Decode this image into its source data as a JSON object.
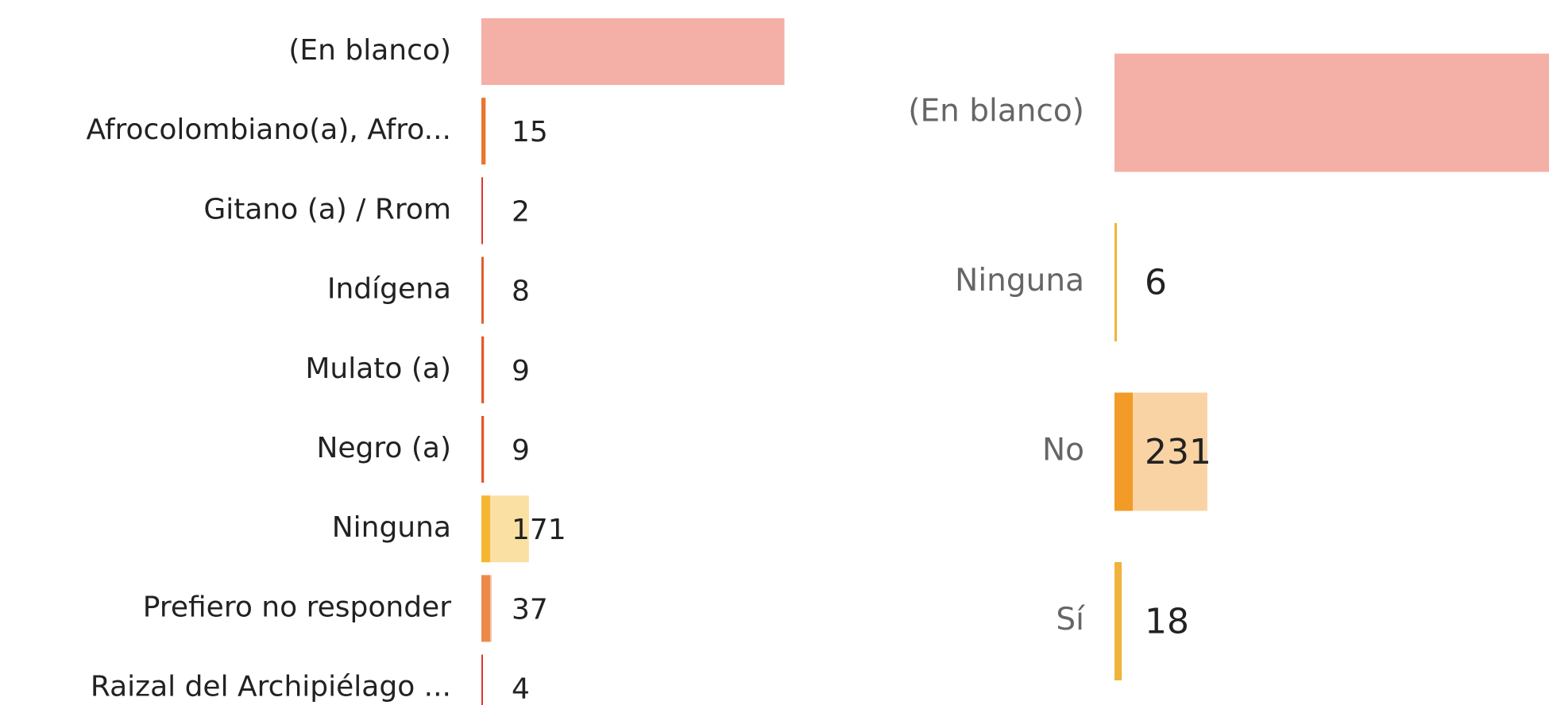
{
  "chart_data": [
    {
      "type": "bar",
      "categories": [
        "(En blanco)",
        "Afrocolombiano(a), Afro...",
        "Gitano (a) / Rrom",
        "Indígena",
        "Mulato (a)",
        "Negro (a)",
        "Ninguna",
        "Prefiero no responder",
        "Raizal del Archipiélago ..."
      ],
      "values": [
        1090,
        15,
        2,
        8,
        9,
        9,
        171,
        37,
        4
      ],
      "value_labels": [
        null,
        "15",
        "2",
        "8",
        "9",
        "9",
        "171",
        "37",
        "4"
      ],
      "colors": [
        "#f4afa6",
        "#f6b48a",
        "#d93a2b",
        "#e05a2b",
        "#e2582a",
        "#e2582a",
        "#fbe0a3",
        "#f7c3a3",
        "#d93a2b"
      ],
      "accent_colors": [
        "#f4afa6",
        "#e8772e",
        "#d93a2b",
        "#e05a2b",
        "#e2582a",
        "#e2582a",
        "#f5b731",
        "#ec8a4a",
        "#d93a2b"
      ]
    },
    {
      "type": "bar",
      "categories": [
        "(En blanco)",
        "Ninguna",
        "No",
        "Sí"
      ],
      "values": [
        1090,
        6,
        231,
        18
      ],
      "value_labels": [
        null,
        "6",
        "231",
        "18"
      ],
      "colors": [
        "#f4afa6",
        "#f0b43c",
        "#fad3a4",
        "#fad3a4"
      ],
      "accent_colors": [
        "#f4afa6",
        "#f0b43c",
        "#f29b26",
        "#f0b43c"
      ]
    }
  ]
}
